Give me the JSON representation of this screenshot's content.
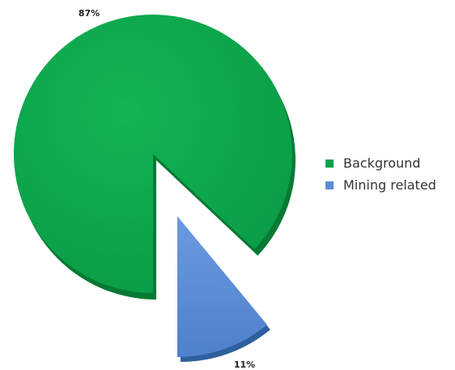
{
  "chart_data": {
    "type": "pie",
    "categories": [
      "Background",
      "Mining related",
      ""
    ],
    "values": [
      87,
      11,
      2
    ],
    "labels": [
      "87%",
      "11%",
      ""
    ],
    "colors": [
      "#0aa34b",
      "#5b8dd6",
      "#ffffff"
    ],
    "legend": [
      {
        "label": "Background",
        "color": "#0aa34b"
      },
      {
        "label": "Mining related",
        "color": "#5b8dd6"
      }
    ],
    "legend_position": "right",
    "title": ""
  }
}
